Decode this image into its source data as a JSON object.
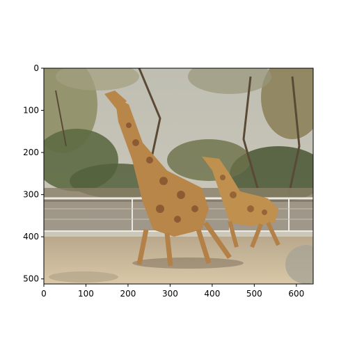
{
  "figure": {
    "image_description_icon": "giraffe-zoo-photo",
    "x_ticks": [
      {
        "value": 0,
        "label": "0"
      },
      {
        "value": 100,
        "label": "100"
      },
      {
        "value": 200,
        "label": "200"
      },
      {
        "value": 300,
        "label": "300"
      },
      {
        "value": 400,
        "label": "400"
      },
      {
        "value": 500,
        "label": "500"
      },
      {
        "value": 600,
        "label": "600"
      }
    ],
    "y_ticks": [
      {
        "value": 0,
        "label": "0"
      },
      {
        "value": 100,
        "label": "100"
      },
      {
        "value": 200,
        "label": "200"
      },
      {
        "value": 300,
        "label": "300"
      },
      {
        "value": 400,
        "label": "400"
      },
      {
        "value": 500,
        "label": "500"
      }
    ],
    "x_range": [
      0,
      640
    ],
    "y_range": [
      0,
      512
    ],
    "colors": {
      "sky": "#c9c6b8",
      "foliage_dark": "#4d5a3a",
      "foliage_mid": "#8a8a5e",
      "ground": "#cbb89a",
      "fence": "#ece9e2",
      "giraffe": "#b9864a",
      "giraffe_spots": "#7a4a2a"
    }
  }
}
